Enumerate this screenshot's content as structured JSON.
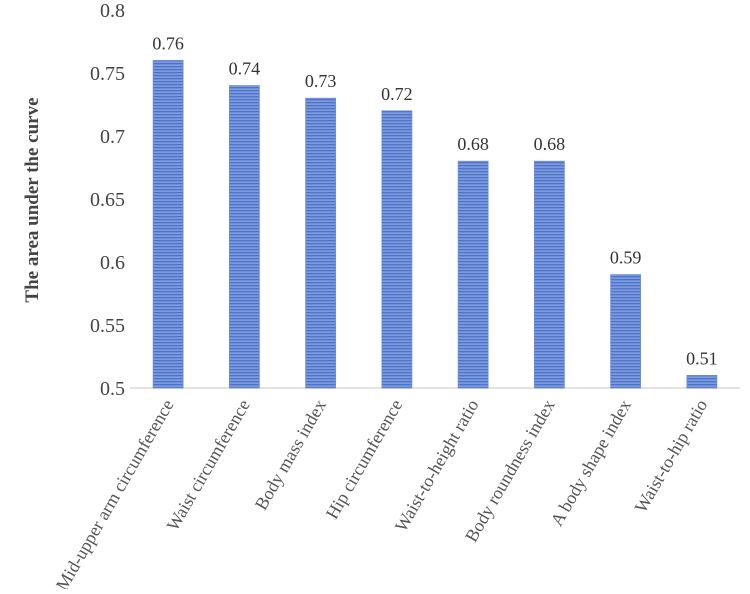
{
  "chart_data": {
    "type": "bar",
    "title": "",
    "xlabel": "",
    "ylabel": "The area under the curve",
    "ylim": [
      0.5,
      0.8
    ],
    "yticks": [
      "0.5",
      "0.55",
      "0.6",
      "0.65",
      "0.7",
      "0.75",
      "0.8"
    ],
    "grid": false,
    "bar_color": "#6f8fd6",
    "bar_pattern": "horizontal-lines",
    "categories": [
      "Mid-upper arm circumference",
      "Waist circumference",
      "Body mass index",
      "Hip circumference",
      "Waist-to-height ratio",
      "Body roundness index",
      "A body shape index",
      "Waist-to-hip ratio"
    ],
    "values": [
      0.76,
      0.74,
      0.73,
      0.72,
      0.68,
      0.68,
      0.59,
      0.51
    ],
    "data_labels": [
      "0.76",
      "0.74",
      "0.73",
      "0.72",
      "0.68",
      "0.68",
      "0.59",
      "0.51"
    ]
  }
}
